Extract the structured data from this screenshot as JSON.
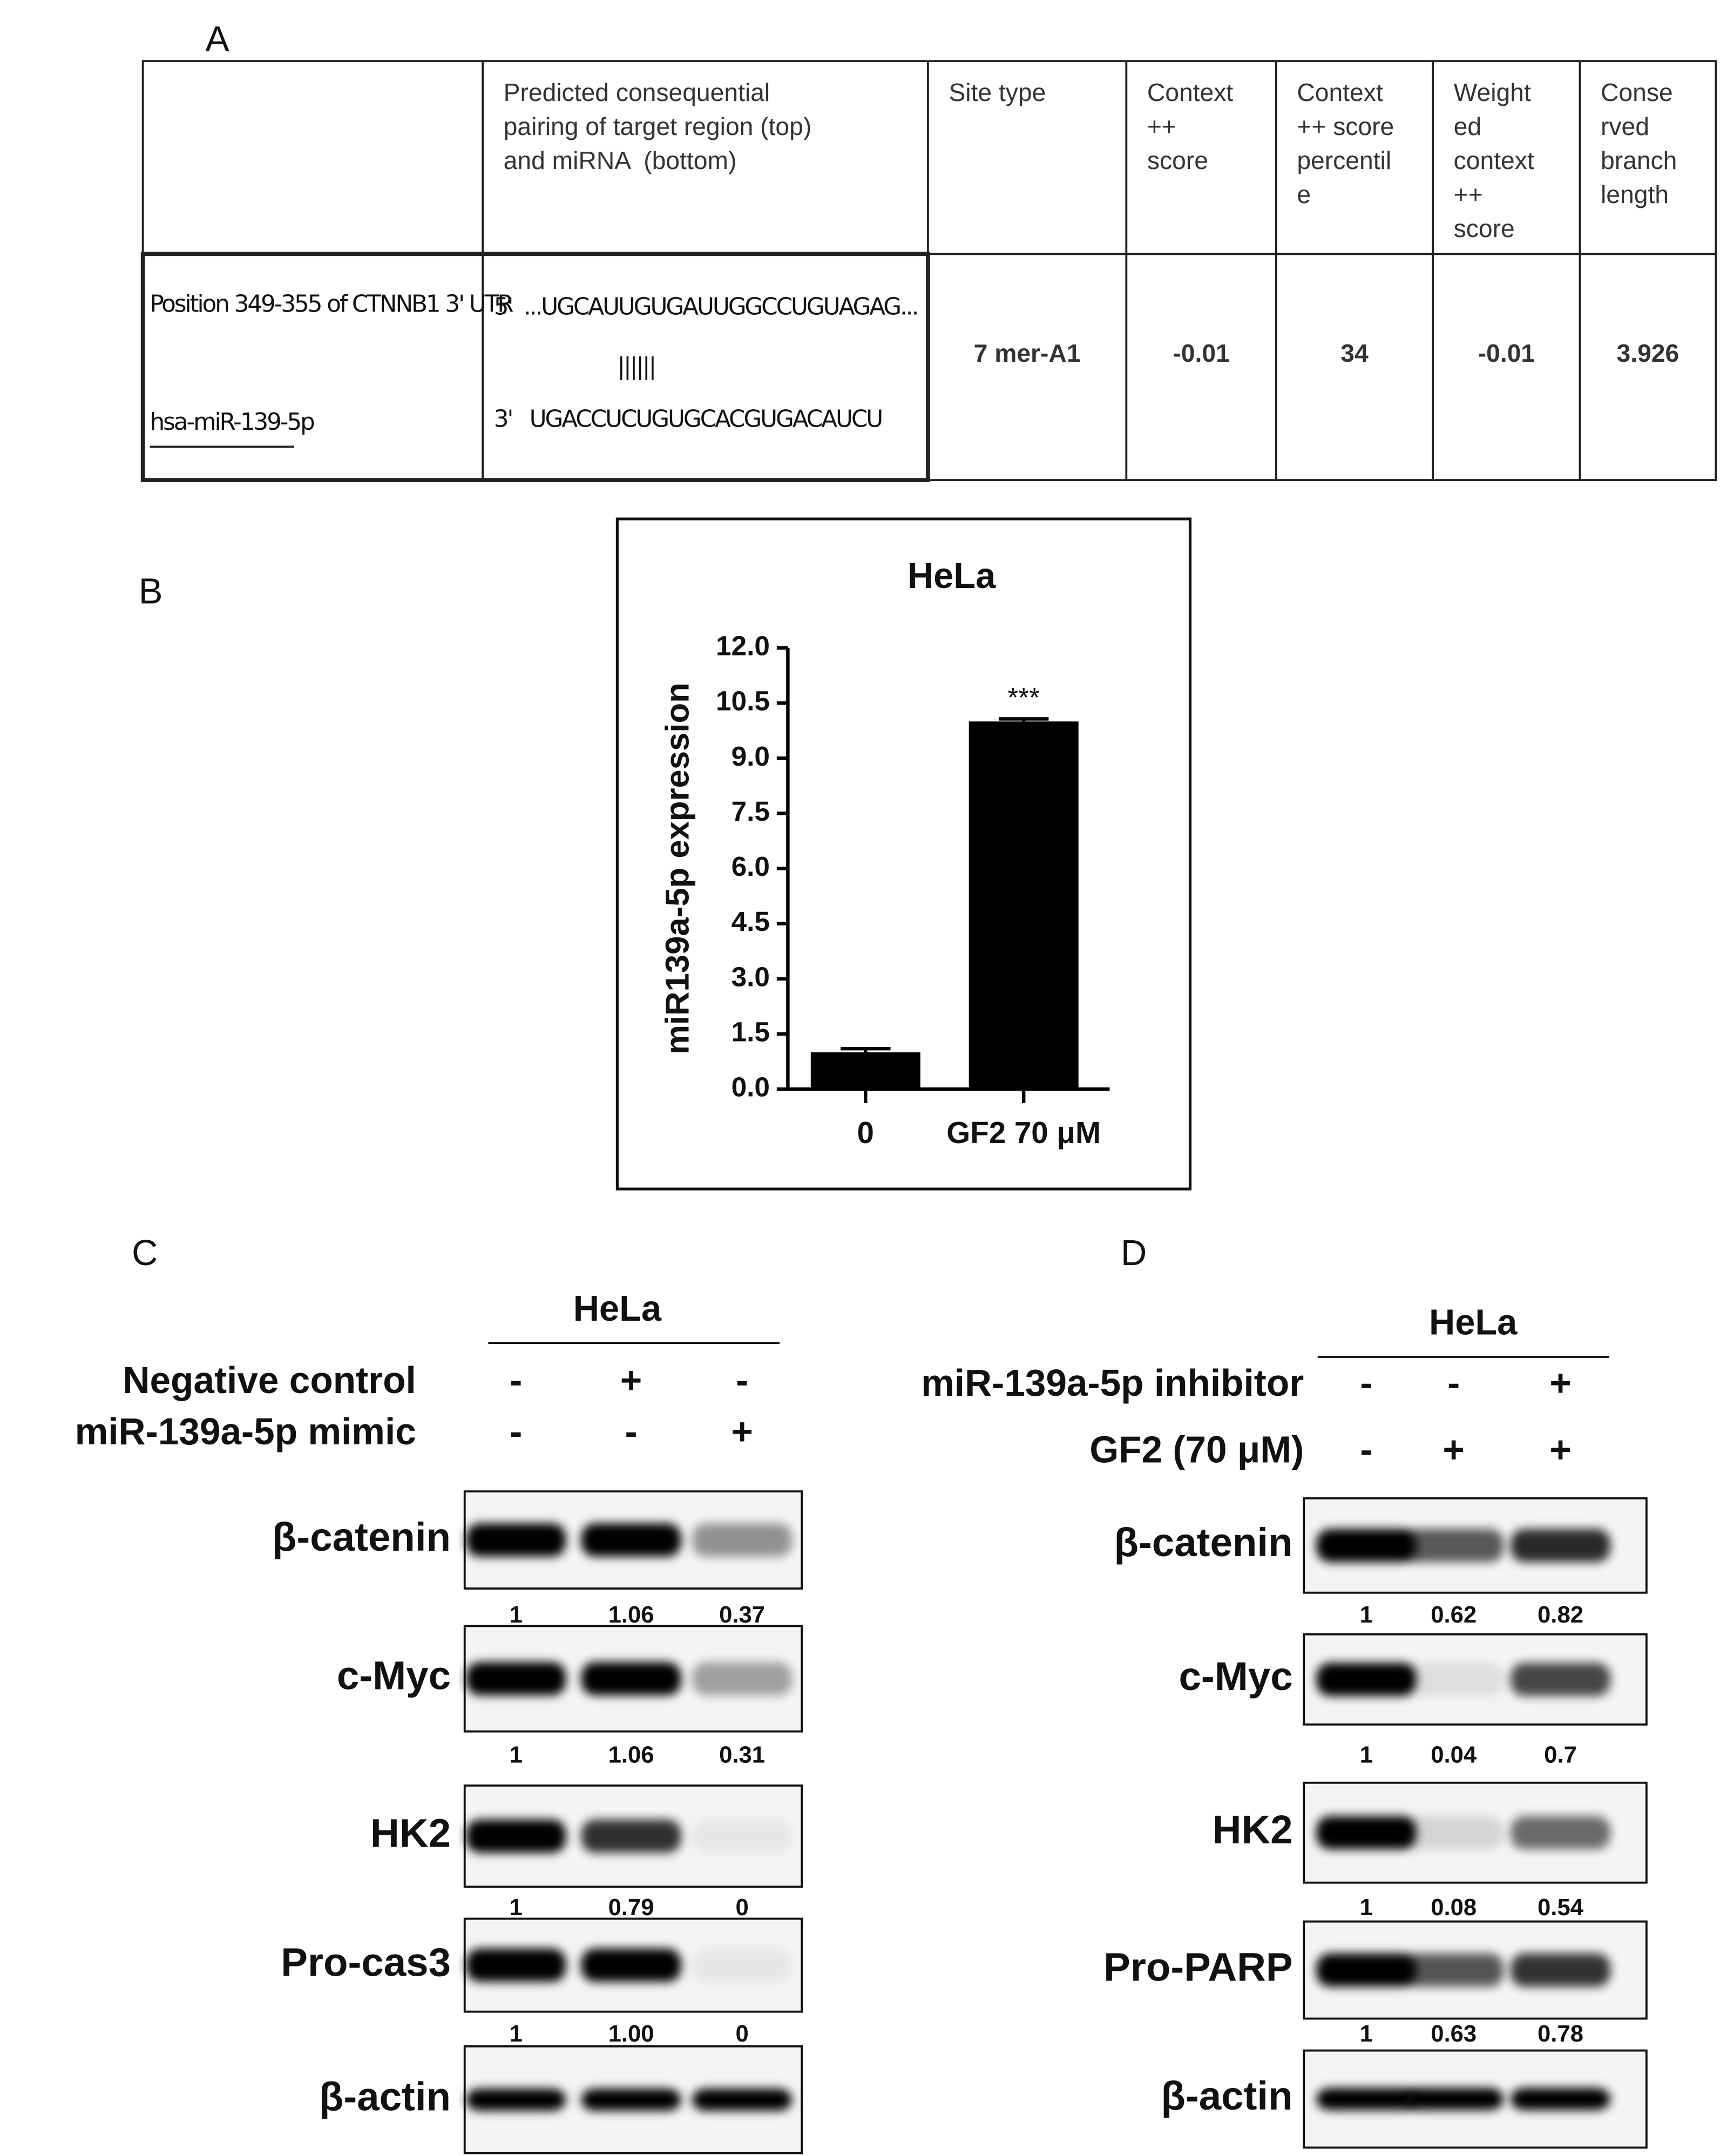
{
  "panel_a": {
    "label": "A",
    "headers": [
      [
        "Predicted consequential",
        "pairing of target region (top)",
        "and miRNA  (bottom)"
      ],
      [
        "Site type"
      ],
      [
        "Context",
        "++",
        "score"
      ],
      [
        "Context",
        "++ score",
        "percentil",
        "e"
      ],
      [
        "Weight",
        "ed",
        "context",
        "++",
        "score"
      ],
      [
        "Conse",
        "rved",
        "branch",
        "length"
      ]
    ],
    "row": {
      "target": [
        "Position 349-355 of CTNNB1 3' UTR",
        "hsa-miR-139-5p"
      ],
      "pairing": [
        "5'  ...UGCAUUGUGAUUGGCCUGUAGAG...",
        "||||||",
        "3'   UGACCUCUGUGCACGUGACAUCU"
      ],
      "values": [
        "7 mer-A1",
        -0.01,
        34,
        -0.01,
        3.926
      ]
    }
  },
  "chart_data": {
    "type": "bar",
    "panel_label": "B",
    "title": "HeLa",
    "y_label": "miR139a-5p expression",
    "categories": [
      "0",
      "GF2 70 μM"
    ],
    "values": [
      1.0,
      10.0
    ],
    "errors": [
      0.1,
      0.07
    ],
    "annotation": "***",
    "color": "#000000",
    "ylim": [
      0,
      12
    ],
    "yticks": [
      {
        "value": 0,
        "label": "0.0"
      },
      1.5,
      {
        "value": 3,
        "label": "3.0"
      },
      4.5,
      {
        "value": 6,
        "label": "6.0"
      },
      7.5,
      {
        "value": 9,
        "label": "9.0"
      },
      10.5,
      {
        "value": 12,
        "label": "12.0"
      }
    ],
    "grid": false
  },
  "panel_c": {
    "label": "C",
    "cell": "HeLa",
    "conditions": [
      {
        "name": "Negative control",
        "signs": [
          "-",
          "+",
          "-"
        ]
      },
      {
        "name": "miR-139a-5p mimic",
        "signs": [
          "-",
          "-",
          "+"
        ]
      }
    ],
    "blots": [
      {
        "name": "β-catenin",
        "quant": [
          "1",
          "1.06",
          "0.37"
        ]
      },
      {
        "name": "c-Myc",
        "quant": [
          "1",
          "1.06",
          "0.31"
        ]
      },
      {
        "name": "HK2",
        "quant": [
          "1",
          "0.79",
          "0"
        ]
      },
      {
        "name": "Pro-cas3",
        "quant": [
          "1",
          "1.00",
          "0"
        ]
      },
      {
        "name": "β-actin"
      }
    ]
  },
  "panel_d": {
    "label": "D",
    "cell": "HeLa",
    "conditions": [
      {
        "name": "miR-139a-5p inhibitor",
        "signs": [
          "-",
          "-",
          "+"
        ]
      },
      {
        "name": "GF2 (70 μM)",
        "signs": [
          "-",
          "+",
          "+"
        ]
      }
    ],
    "blots": [
      {
        "name": "β-catenin",
        "quant": [
          "1",
          "0.62",
          "0.82"
        ]
      },
      {
        "name": "c-Myc",
        "quant": [
          "1",
          "0.04",
          "0.7"
        ]
      },
      {
        "name": "HK2",
        "quant": [
          "1",
          "0.08",
          "0.54"
        ]
      },
      {
        "name": "Pro-PARP",
        "quant": [
          "1",
          "0.63",
          "0.78"
        ]
      },
      {
        "name": "β-actin"
      }
    ]
  }
}
